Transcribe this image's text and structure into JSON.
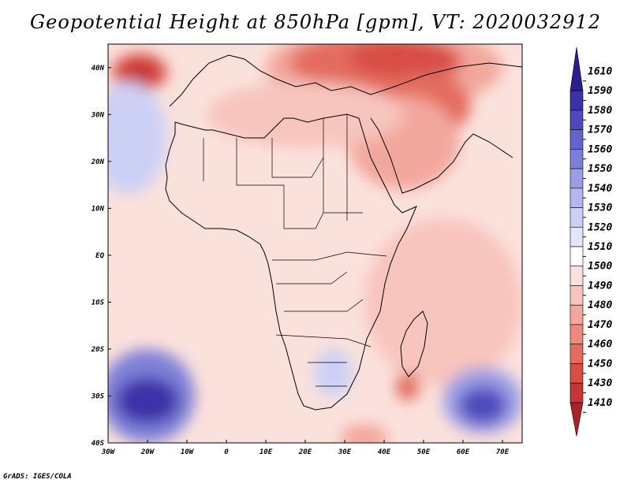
{
  "title": "Geopotential Height at 850hPa [gpm], VT: 2020032912",
  "footer": "GrADS: IGES/COLA",
  "map": {
    "projection": "latlon",
    "lon_range": [
      -30,
      75
    ],
    "lat_range": [
      -40,
      45
    ],
    "x_ticks": [
      {
        "value": -30,
        "label": "30W"
      },
      {
        "value": -20,
        "label": "20W"
      },
      {
        "value": -10,
        "label": "10W"
      },
      {
        "value": 0,
        "label": "0"
      },
      {
        "value": 10,
        "label": "10E"
      },
      {
        "value": 20,
        "label": "20E"
      },
      {
        "value": 30,
        "label": "30E"
      },
      {
        "value": 40,
        "label": "40E"
      },
      {
        "value": 50,
        "label": "50E"
      },
      {
        "value": 60,
        "label": "60E"
      },
      {
        "value": 70,
        "label": "70E"
      }
    ],
    "y_ticks": [
      {
        "value": 40,
        "label": "40N"
      },
      {
        "value": 30,
        "label": "30N"
      },
      {
        "value": 20,
        "label": "20N"
      },
      {
        "value": 10,
        "label": "10N"
      },
      {
        "value": 0,
        "label": "EQ"
      },
      {
        "value": -10,
        "label": "10S"
      },
      {
        "value": -20,
        "label": "20S"
      },
      {
        "value": -30,
        "label": "30S"
      },
      {
        "value": -40,
        "label": "40S"
      }
    ]
  },
  "colorbar": {
    "levels": [
      {
        "label": "1610",
        "color": "#2b1d8f"
      },
      {
        "label": "1590",
        "color": "#3c32a8"
      },
      {
        "label": "1580",
        "color": "#4f49bd"
      },
      {
        "label": "1570",
        "color": "#6564cc"
      },
      {
        "label": "1560",
        "color": "#7e80d8"
      },
      {
        "label": "1550",
        "color": "#9a9de4"
      },
      {
        "label": "1540",
        "color": "#b4b7ee"
      },
      {
        "label": "1530",
        "color": "#ccd0f5"
      },
      {
        "label": "1520",
        "color": "#e2e5fb"
      },
      {
        "label": "1510",
        "color": "#ffffff"
      },
      {
        "label": "1500",
        "color": "#fbe1dc"
      },
      {
        "label": "1490",
        "color": "#f7c5bd"
      },
      {
        "label": "1480",
        "color": "#f2a79c"
      },
      {
        "label": "1470",
        "color": "#ec8b7d"
      },
      {
        "label": "1460",
        "color": "#e36c5e"
      },
      {
        "label": "1450",
        "color": "#d84e45"
      },
      {
        "label": "1430",
        "color": "#c83535"
      },
      {
        "label": "1410",
        "color": "#a92226"
      }
    ]
  },
  "field_blobs": [
    {
      "lon": -22,
      "lat": 39,
      "rx": 7,
      "ry": 4,
      "level": "1450"
    },
    {
      "lon": -22,
      "lat": 39,
      "rx": 4,
      "ry": 2.5,
      "level": "1430"
    },
    {
      "lon": 40,
      "lat": 40,
      "rx": 30,
      "ry": 9,
      "level": "1480"
    },
    {
      "lon": 38,
      "lat": 41,
      "rx": 22,
      "ry": 6,
      "level": "1460"
    },
    {
      "lon": 45,
      "lat": 42,
      "rx": 14,
      "ry": 4,
      "level": "1450"
    },
    {
      "lon": 50,
      "lat": 32,
      "rx": 12,
      "ry": 7,
      "level": "1460"
    },
    {
      "lon": 45,
      "lat": 24,
      "rx": 14,
      "ry": 10,
      "level": "1480"
    },
    {
      "lon": 20,
      "lat": 30,
      "rx": 25,
      "ry": 7,
      "level": "1490"
    },
    {
      "lon": 10,
      "lat": 10,
      "rx": 18,
      "ry": 12,
      "level": "1500"
    },
    {
      "lon": 55,
      "lat": -10,
      "rx": 20,
      "ry": 18,
      "level": "1490"
    },
    {
      "lon": 46,
      "lat": -28,
      "rx": 3,
      "ry": 3,
      "level": "1460"
    },
    {
      "lon": 35,
      "lat": -39,
      "rx": 6,
      "ry": 3,
      "level": "1480"
    },
    {
      "lon": -25,
      "lat": 25,
      "rx": 10,
      "ry": 12,
      "level": "1530"
    },
    {
      "lon": -20,
      "lat": -30,
      "rx": 12,
      "ry": 10,
      "level": "1560"
    },
    {
      "lon": -20,
      "lat": -31,
      "rx": 8,
      "ry": 5,
      "level": "1590"
    },
    {
      "lon": 65,
      "lat": -31,
      "rx": 10,
      "ry": 7,
      "level": "1550"
    },
    {
      "lon": 65,
      "lat": -32,
      "rx": 6,
      "ry": 4,
      "level": "1580"
    },
    {
      "lon": 27,
      "lat": -25,
      "rx": 5,
      "ry": 5,
      "level": "1530"
    }
  ]
}
